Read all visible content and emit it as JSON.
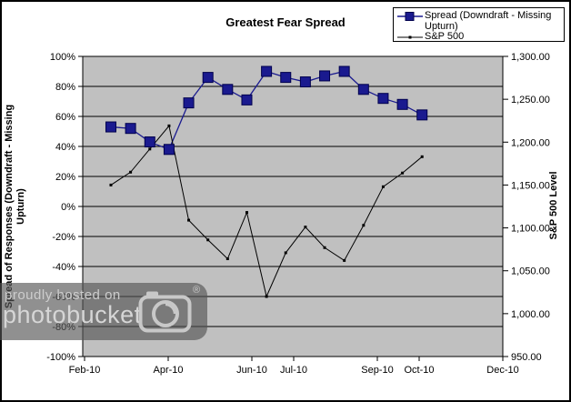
{
  "title": "Greatest Fear Spread",
  "legend": {
    "series1_label": "Spread (Downdraft - Missing Upturn)",
    "series1_label_line1": "Spread (Downdraft - Missing",
    "series1_label_line2": "Upturn)",
    "series2_label": "S&P 500"
  },
  "watermark": {
    "line1": "proudly hosted on",
    "line2": "photobucket",
    "registered_mark": "®"
  },
  "chart_data": {
    "type": "line",
    "title": "Greatest Fear Spread",
    "plot_background": "#c0c0c0",
    "gridlines": "horizontal",
    "legend_position": "top-right",
    "x_axis": {
      "labels": [
        "Feb-10",
        "Apr-10",
        "Jun-10",
        "Jul-10",
        "Sep-10",
        "Oct-10",
        "Dec-10"
      ],
      "label_positions_months_from_feb10": [
        0,
        2,
        4,
        5,
        7,
        8,
        10
      ],
      "range_months": [
        0,
        10
      ]
    },
    "left_y_axis": {
      "title": "Spread of Responses (Downdraft - Missing Upturn)",
      "title_line1": "Spread of Responses (Downdraft - Missing",
      "title_line2": "Upturn)",
      "tick_labels": [
        "100%",
        "80%",
        "60%",
        "40%",
        "20%",
        "0%",
        "-20%",
        "-40%",
        "-60%",
        "-80%",
        "-100%"
      ],
      "min": -100,
      "max": 100,
      "step": 20
    },
    "right_y_axis": {
      "title": "S&P 500 Level",
      "tick_labels": [
        "1,300.00",
        "1,250.00",
        "1,200.00",
        "1,150.00",
        "1,100.00",
        "1,050.00",
        "1,000.00",
        "950.00"
      ],
      "min": 950,
      "max": 1300,
      "step": 50
    },
    "series": [
      {
        "name": "Spread (Downdraft - Missing Upturn)",
        "axis": "left",
        "color": "#1a1a8f",
        "marker": "square",
        "x_months_from_feb10": [
          0.63,
          1.1,
          1.56,
          2.02,
          2.49,
          2.95,
          3.42,
          3.88,
          4.35,
          4.81,
          5.28,
          5.74,
          6.21,
          6.67,
          7.14,
          7.6,
          8.07
        ],
        "values_percent": [
          53,
          52,
          43,
          38,
          69,
          86,
          78,
          71,
          90,
          86,
          83,
          87,
          90,
          78,
          72,
          68,
          61
        ]
      },
      {
        "name": "S&P 500",
        "axis": "right",
        "color": "#000000",
        "marker": "dot",
        "x_months_from_feb10": [
          0.63,
          1.1,
          1.56,
          2.02,
          2.49,
          2.95,
          3.42,
          3.88,
          4.35,
          4.81,
          5.28,
          5.74,
          6.21,
          6.67,
          7.14,
          7.6,
          8.07
        ],
        "values": [
          1150,
          1165,
          1192,
          1219,
          1109,
          1086,
          1064,
          1118,
          1020,
          1071,
          1101,
          1077,
          1062,
          1103,
          1148,
          1164,
          1183
        ]
      }
    ]
  }
}
